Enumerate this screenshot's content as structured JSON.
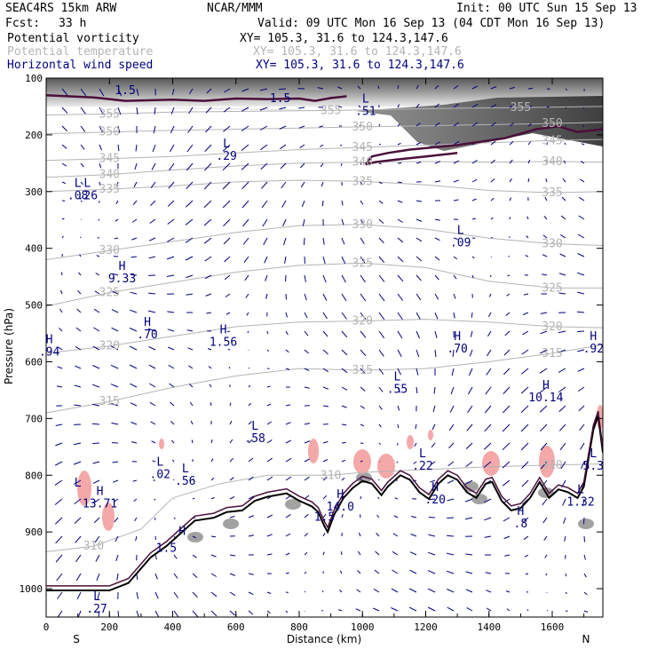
{
  "header": {
    "model": "SEAC4RS 15km ARW",
    "center": "NCAR/MMM",
    "init": "Init: 00 UTC Sun 15 Sep 13",
    "fcst_label": "Fcst:",
    "fcst_value": "33 h",
    "valid": "Valid: 09 UTC Mon 16 Sep 13 (04 CDT Mon 16 Sep 13)",
    "fields": [
      {
        "name": "Potential vorticity",
        "xy": "XY= 105.3, 31.6 to 124.3,147.6",
        "color": "#000000"
      },
      {
        "name": "Potential temperature",
        "xy": "XY= 105.3, 31.6 to 124.3,147.6",
        "color": "#b4b4b4"
      },
      {
        "name": "Horizontal wind speed",
        "xy": "XY= 105.3, 31.6 to 124.3,147.6",
        "color": "#000080"
      }
    ]
  },
  "chart_data": {
    "type": "line",
    "xlabel": "Distance (km)",
    "ylabel": "Pressure (hPa)",
    "xlim": [
      0,
      1760
    ],
    "ylim": [
      1050,
      100
    ],
    "x_ticks": [
      0,
      200,
      400,
      600,
      800,
      1000,
      1200,
      1400,
      1600
    ],
    "y_ticks": [
      100,
      200,
      300,
      400,
      500,
      600,
      700,
      800,
      900,
      1000
    ],
    "end_labels": {
      "left": "S",
      "right": "N"
    },
    "colors": {
      "theta": "#b4b4b4",
      "pv": "#4a0f3a",
      "wind": "#000080",
      "terrain": "#000000",
      "pink": "#f4a8a8"
    },
    "theta_isentropes": [
      {
        "value": 355,
        "points": [
          [
            0,
            165
          ],
          [
            200,
            163
          ],
          [
            400,
            160
          ],
          [
            700,
            158
          ],
          [
            900,
            157
          ],
          [
            1100,
            155
          ],
          [
            1300,
            153
          ],
          [
            1500,
            152
          ],
          [
            1760,
            150
          ]
        ]
      },
      {
        "value": 350,
        "points": [
          [
            0,
            198
          ],
          [
            200,
            195
          ],
          [
            400,
            192
          ],
          [
            600,
            190
          ],
          [
            800,
            188
          ],
          [
            1000,
            186
          ],
          [
            1200,
            184
          ],
          [
            1400,
            182
          ],
          [
            1600,
            180
          ],
          [
            1760,
            178
          ]
        ]
      },
      {
        "value": 345,
        "points": [
          [
            0,
            245
          ],
          [
            200,
            242
          ],
          [
            400,
            238
          ],
          [
            600,
            232
          ],
          [
            800,
            226
          ],
          [
            1000,
            222
          ],
          [
            1200,
            218
          ],
          [
            1400,
            214
          ],
          [
            1600,
            210
          ],
          [
            1760,
            208
          ]
        ]
      },
      {
        "value": 340,
        "points": [
          [
            0,
            275
          ],
          [
            200,
            270
          ],
          [
            400,
            262
          ],
          [
            600,
            255
          ],
          [
            800,
            250
          ],
          [
            1000,
            248
          ],
          [
            1200,
            247
          ],
          [
            1400,
            248
          ],
          [
            1600,
            247
          ],
          [
            1760,
            248
          ]
        ]
      },
      {
        "value": 335,
        "points": [
          [
            0,
            300
          ],
          [
            200,
            296
          ],
          [
            400,
            290
          ],
          [
            600,
            283
          ],
          [
            800,
            280
          ],
          [
            1000,
            282
          ],
          [
            1200,
            288
          ],
          [
            1400,
            298
          ],
          [
            1600,
            302
          ],
          [
            1760,
            300
          ]
        ]
      },
      {
        "value": 330,
        "points": [
          [
            0,
            420
          ],
          [
            200,
            404
          ],
          [
            400,
            388
          ],
          [
            600,
            372
          ],
          [
            800,
            360
          ],
          [
            1000,
            358
          ],
          [
            1200,
            366
          ],
          [
            1400,
            382
          ],
          [
            1600,
            392
          ],
          [
            1760,
            395
          ]
        ]
      },
      {
        "value": 325,
        "points": [
          [
            0,
            502
          ],
          [
            200,
            478
          ],
          [
            400,
            460
          ],
          [
            600,
            442
          ],
          [
            800,
            430
          ],
          [
            1000,
            426
          ],
          [
            1200,
            434
          ],
          [
            1400,
            458
          ],
          [
            1600,
            470
          ],
          [
            1760,
            470
          ]
        ]
      },
      {
        "value": 320,
        "points": [
          [
            0,
            585
          ],
          [
            200,
            572
          ],
          [
            400,
            555
          ],
          [
            600,
            538
          ],
          [
            800,
            530
          ],
          [
            1000,
            528
          ],
          [
            1200,
            525
          ],
          [
            1400,
            530
          ],
          [
            1600,
            538
          ],
          [
            1760,
            540
          ]
        ]
      },
      {
        "value": 315,
        "points": [
          [
            0,
            690
          ],
          [
            200,
            670
          ],
          [
            400,
            645
          ],
          [
            600,
            625
          ],
          [
            800,
            612
          ],
          [
            1000,
            615
          ],
          [
            1200,
            612
          ],
          [
            1400,
            600
          ],
          [
            1600,
            585
          ],
          [
            1760,
            570
          ]
        ]
      },
      {
        "value": 310,
        "points": [
          [
            0,
            935
          ],
          [
            150,
            925
          ],
          [
            300,
            895
          ],
          [
            400,
            840
          ],
          [
            550,
            815
          ],
          [
            700,
            800
          ],
          [
            900,
            800
          ],
          [
            1000,
            795
          ],
          [
            1200,
            790
          ],
          [
            1400,
            785
          ],
          [
            1600,
            782
          ],
          [
            1760,
            780
          ]
        ]
      }
    ],
    "pv_contours": [
      {
        "value": 1.5,
        "points": [
          [
            0,
            130
          ],
          [
            150,
            134
          ],
          [
            250,
            140
          ],
          [
            400,
            138
          ],
          [
            500,
            140
          ],
          [
            600,
            136
          ],
          [
            700,
            137
          ],
          [
            800,
            136
          ],
          [
            850,
            140
          ],
          [
            900,
            135
          ],
          [
            950,
            132
          ]
        ]
      },
      {
        "value": 1.5,
        "points": [
          [
            1010,
            252
          ],
          [
            1030,
            238
          ],
          [
            1080,
            232
          ],
          [
            1150,
            226
          ],
          [
            1300,
            218
          ],
          [
            1450,
            206
          ],
          [
            1550,
            190
          ],
          [
            1620,
            185
          ],
          [
            1680,
            195
          ],
          [
            1760,
            190
          ]
        ]
      },
      {
        "value": 1.5,
        "points": [
          [
            1010,
            252
          ],
          [
            1040,
            248
          ],
          [
            1100,
            244
          ],
          [
            1200,
            238
          ],
          [
            1300,
            232
          ]
        ]
      }
    ],
    "pv_labels": [
      {
        "text": "1.5",
        "x": 250,
        "y": 128
      },
      {
        "text": "1.5",
        "x": 740,
        "y": 142
      },
      {
        "text": "1.5",
        "x": 880,
        "y": 880
      },
      {
        "text": "1.5",
        "x": 380,
        "y": 935
      }
    ],
    "extrema": [
      {
        "letter": "L",
        "value": ".51",
        "x": 1010,
        "y": 143
      },
      {
        "letter": "L",
        "value": ".29",
        "x": 570,
        "y": 222
      },
      {
        "letter": "L",
        "value": ".08",
        "x": 100,
        "y": 292
      },
      {
        "letter": "L",
        "value": ".26",
        "x": 130,
        "y": 292
      },
      {
        "letter": "L",
        "value": ".09",
        "x": 1310,
        "y": 375
      },
      {
        "letter": "H",
        "value": "9.33",
        "x": 240,
        "y": 438
      },
      {
        "letter": "H",
        "value": ".70",
        "x": 320,
        "y": 537
      },
      {
        "letter": "H",
        "value": "1.56",
        "x": 560,
        "y": 550
      },
      {
        "letter": "H",
        "value": ".94",
        "x": 10,
        "y": 567
      },
      {
        "letter": "H",
        "value": ".70",
        "x": 1300,
        "y": 562
      },
      {
        "letter": "H",
        "value": ".92",
        "x": 1730,
        "y": 562
      },
      {
        "letter": "L",
        "value": ".55",
        "x": 1110,
        "y": 633
      },
      {
        "letter": "H",
        "value": "10.14",
        "x": 1580,
        "y": 648
      },
      {
        "letter": "L",
        "value": ".58",
        "x": 660,
        "y": 720
      },
      {
        "letter": "L",
        "value": ".22",
        "x": 1190,
        "y": 768
      },
      {
        "letter": "L",
        "value": ".02",
        "x": 360,
        "y": 783
      },
      {
        "letter": "L",
        "value": ".56",
        "x": 440,
        "y": 795
      },
      {
        "letter": "L",
        "value": "5.3",
        "x": 1730,
        "y": 768
      },
      {
        "letter": "L",
        "value": "",
        "x": 100,
        "y": 820
      },
      {
        "letter": "H",
        "value": "13.71",
        "x": 170,
        "y": 835
      },
      {
        "letter": "H",
        "value": "14.0",
        "x": 930,
        "y": 840
      },
      {
        "letter": "H",
        "value": ".20",
        "x": 1230,
        "y": 828
      },
      {
        "letter": "L",
        "value": "1.32",
        "x": 1690,
        "y": 832
      },
      {
        "letter": "H",
        "value": ".8",
        "x": 1500,
        "y": 870
      },
      {
        "letter": "H",
        "value": "",
        "x": 430,
        "y": 905
      },
      {
        "letter": "L",
        "value": ".27",
        "x": 160,
        "y": 1020
      }
    ],
    "theta_labels_note": "isentrope values shown along contours",
    "terrain": [
      [
        0,
        1003
      ],
      [
        200,
        1003
      ],
      [
        260,
        990
      ],
      [
        330,
        945
      ],
      [
        380,
        925
      ],
      [
        420,
        905
      ],
      [
        470,
        880
      ],
      [
        530,
        875
      ],
      [
        570,
        865
      ],
      [
        620,
        862
      ],
      [
        660,
        845
      ],
      [
        700,
        838
      ],
      [
        760,
        832
      ],
      [
        800,
        845
      ],
      [
        840,
        855
      ],
      [
        860,
        865
      ],
      [
        880,
        890
      ],
      [
        890,
        900
      ],
      [
        910,
        870
      ],
      [
        940,
        840
      ],
      [
        970,
        822
      ],
      [
        1000,
        810
      ],
      [
        1030,
        815
      ],
      [
        1060,
        835
      ],
      [
        1080,
        820
      ],
      [
        1120,
        800
      ],
      [
        1150,
        808
      ],
      [
        1180,
        830
      ],
      [
        1210,
        842
      ],
      [
        1240,
        815
      ],
      [
        1270,
        800
      ],
      [
        1300,
        808
      ],
      [
        1330,
        830
      ],
      [
        1360,
        840
      ],
      [
        1390,
        815
      ],
      [
        1410,
        812
      ],
      [
        1440,
        845
      ],
      [
        1470,
        862
      ],
      [
        1500,
        858
      ],
      [
        1530,
        840
      ],
      [
        1560,
        812
      ],
      [
        1590,
        840
      ],
      [
        1620,
        825
      ],
      [
        1650,
        830
      ],
      [
        1680,
        840
      ],
      [
        1700,
        820
      ],
      [
        1730,
        720
      ],
      [
        1745,
        695
      ],
      [
        1760,
        760
      ]
    ]
  }
}
